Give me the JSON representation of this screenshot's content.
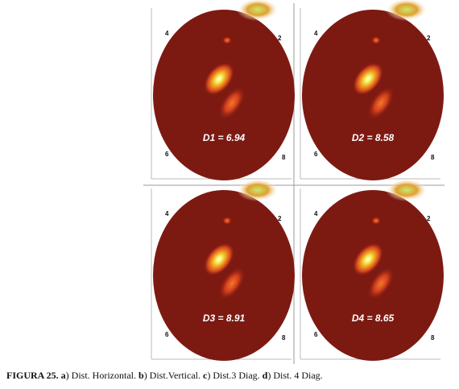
{
  "panels": [
    {
      "letter": "a.",
      "label": "D1 = 6.94",
      "numbers": [
        "4",
        "2",
        "6",
        "8"
      ]
    },
    {
      "letter": "b.",
      "label": "D2 = 8.58",
      "numbers": [
        "4",
        "2",
        "6",
        "8"
      ]
    },
    {
      "letter": "c.",
      "label": "D3 = 8.91",
      "numbers": [
        "4",
        "2",
        "6",
        "8"
      ]
    },
    {
      "letter": "d.",
      "label": "D4 = 8.65",
      "numbers": [
        "4",
        "2",
        "6",
        "8"
      ]
    }
  ],
  "caption": [
    {
      "text": "FIGURA 25. a",
      "bold": true
    },
    {
      "text": ") Dist. Horizontal. ",
      "bold": false
    },
    {
      "text": "b",
      "bold": true
    },
    {
      "text": ") Dist.Vertical. ",
      "bold": false
    },
    {
      "text": "c",
      "bold": true
    },
    {
      "text": ") Dist.3 Diag. ",
      "bold": false
    },
    {
      "text": "d",
      "bold": true
    },
    {
      "text": ") Dist. 4 Diag.",
      "bold": false
    }
  ]
}
